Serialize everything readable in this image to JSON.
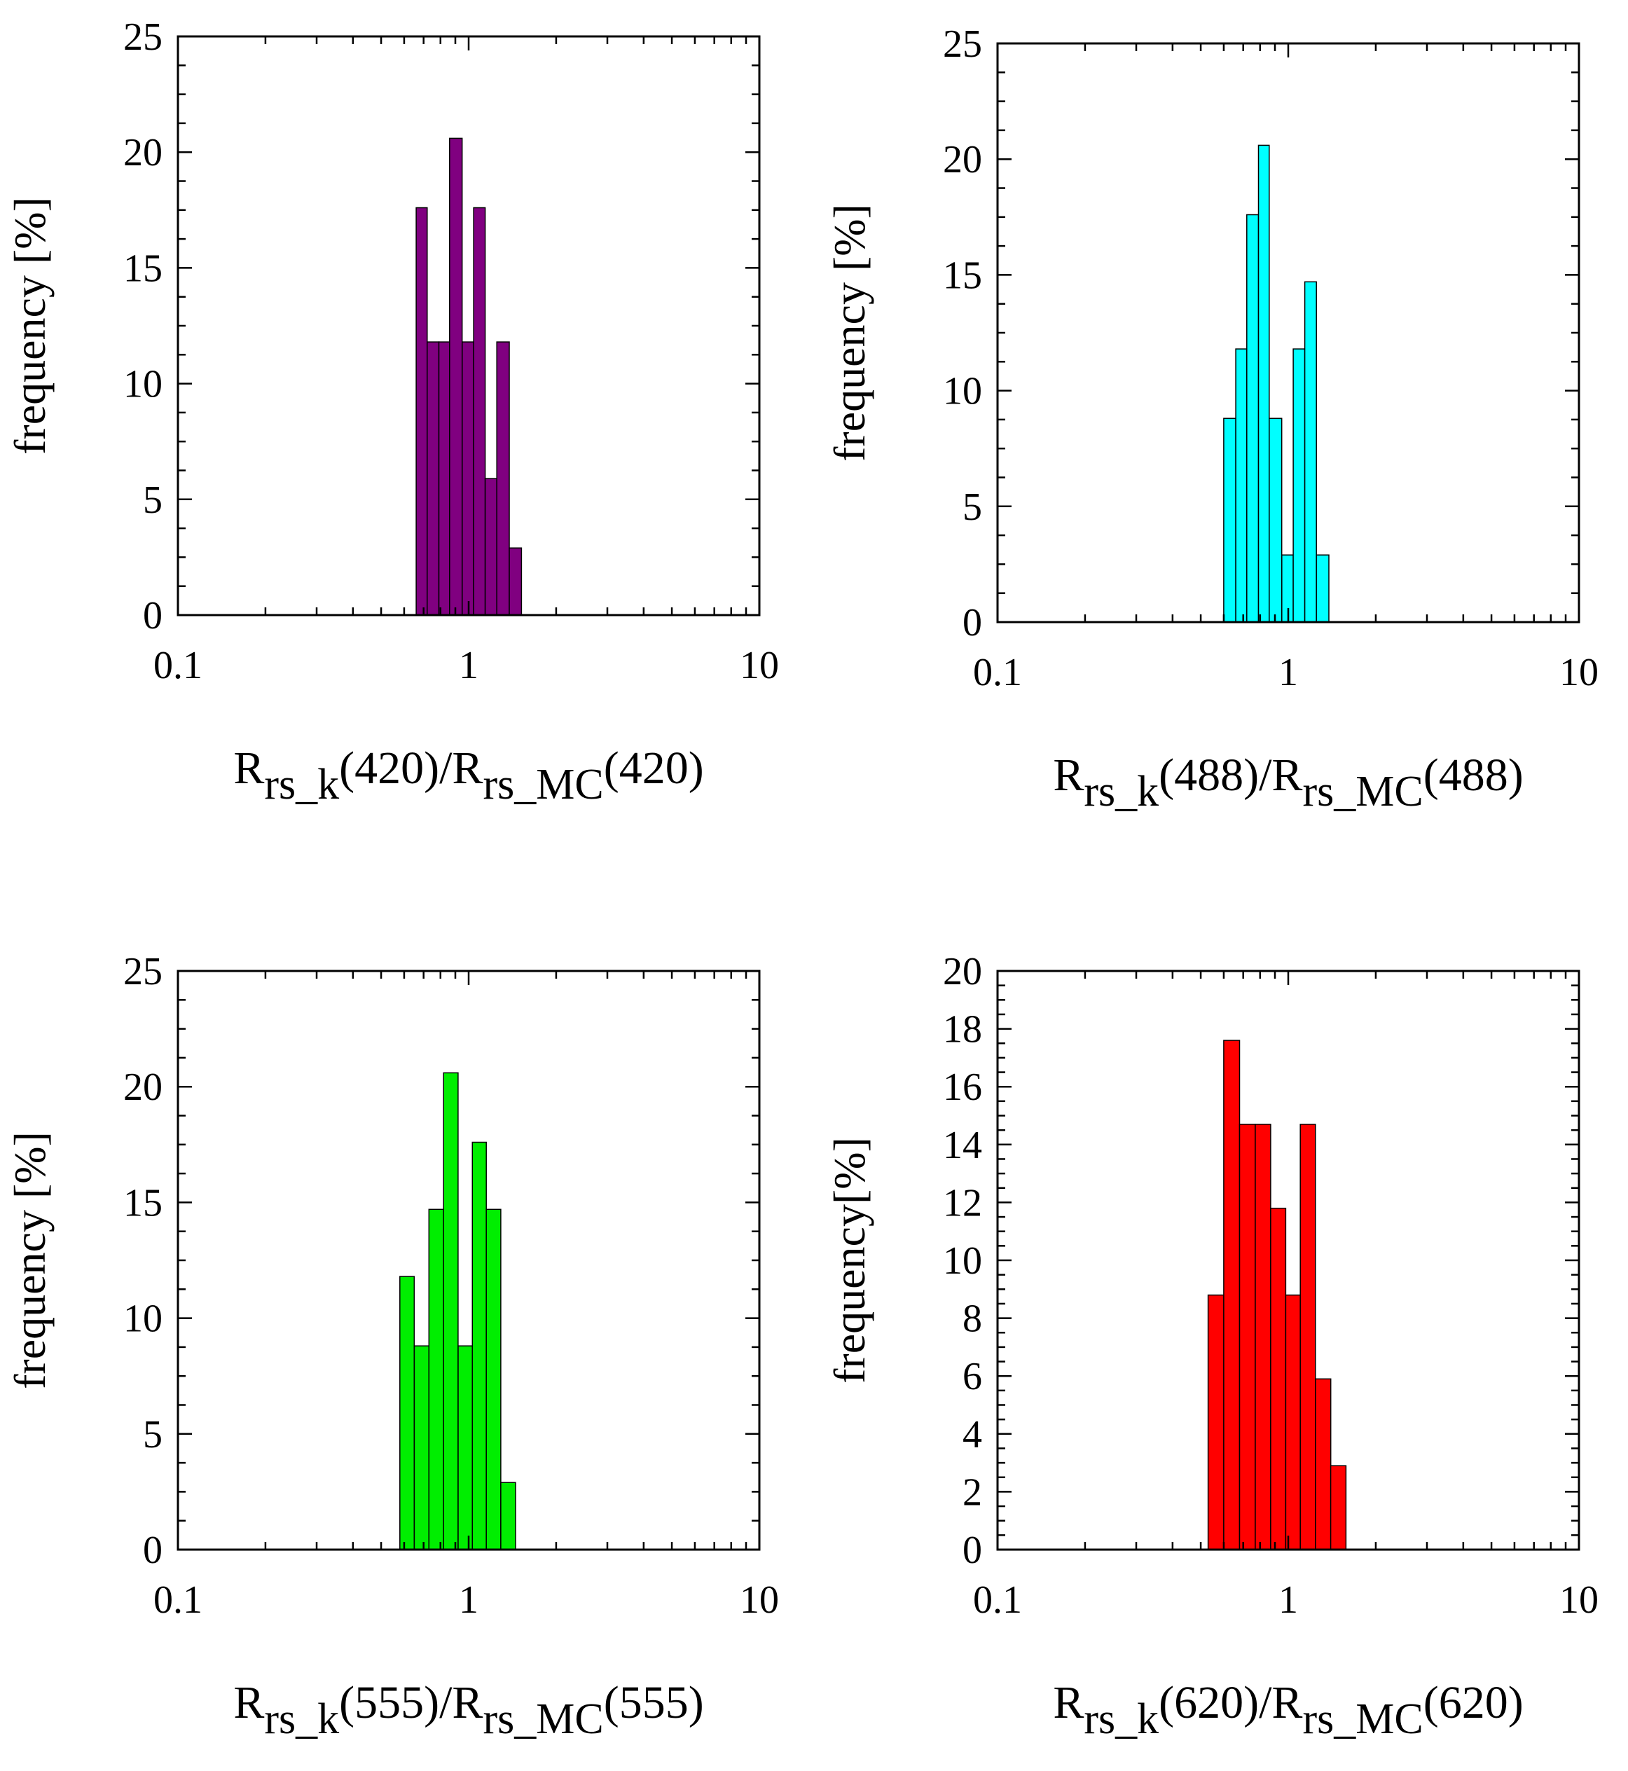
{
  "chart_data": [
    {
      "id": "p420",
      "type": "bar",
      "title": "",
      "xscale": "log",
      "xlim": [
        0.1,
        10
      ],
      "ylim": [
        0,
        25
      ],
      "yticks": [
        0,
        5,
        10,
        15,
        20,
        25
      ],
      "xtick_labels": [
        "0.1",
        "1",
        "10"
      ],
      "ylabel": "frequency [%]",
      "xlabel": {
        "r1": "R",
        "s1": "rs_k",
        "m1": "(420)/",
        "r2": "R",
        "s2": "rs_MC",
        "m2": "(420)"
      },
      "color": "#800080",
      "bins": [
        {
          "x0": 0.66,
          "x1": 0.72,
          "value": 17.6
        },
        {
          "x0": 0.72,
          "x1": 0.79,
          "value": 11.8
        },
        {
          "x0": 0.79,
          "x1": 0.86,
          "value": 11.8
        },
        {
          "x0": 0.86,
          "x1": 0.95,
          "value": 20.6
        },
        {
          "x0": 0.95,
          "x1": 1.04,
          "value": 11.8
        },
        {
          "x0": 1.04,
          "x1": 1.14,
          "value": 17.6
        },
        {
          "x0": 1.14,
          "x1": 1.25,
          "value": 5.9
        },
        {
          "x0": 1.25,
          "x1": 1.38,
          "value": 11.8
        },
        {
          "x0": 1.38,
          "x1": 1.52,
          "value": 2.9
        }
      ]
    },
    {
      "id": "p488",
      "type": "bar",
      "title": "",
      "xscale": "log",
      "xlim": [
        0.1,
        10
      ],
      "ylim": [
        0,
        25
      ],
      "yticks": [
        0,
        5,
        10,
        15,
        20,
        25
      ],
      "xtick_labels": [
        "0.1",
        "1",
        "10"
      ],
      "ylabel": "frequency [%]",
      "xlabel": {
        "r1": "R",
        "s1": "rs_k",
        "m1": "(488)/",
        "r2": "R",
        "s2": "rs_MC",
        "m2": "(488)"
      },
      "color": "#00ffff",
      "bins": [
        {
          "x0": 0.6,
          "x1": 0.66,
          "value": 8.8
        },
        {
          "x0": 0.66,
          "x1": 0.72,
          "value": 11.8
        },
        {
          "x0": 0.72,
          "x1": 0.79,
          "value": 17.6
        },
        {
          "x0": 0.79,
          "x1": 0.86,
          "value": 20.6
        },
        {
          "x0": 0.86,
          "x1": 0.95,
          "value": 8.8
        },
        {
          "x0": 0.95,
          "x1": 1.04,
          "value": 2.9
        },
        {
          "x0": 1.04,
          "x1": 1.14,
          "value": 11.8
        },
        {
          "x0": 1.14,
          "x1": 1.25,
          "value": 14.7
        },
        {
          "x0": 1.25,
          "x1": 1.38,
          "value": 2.9
        }
      ]
    },
    {
      "id": "p555",
      "type": "bar",
      "title": "",
      "xscale": "log",
      "xlim": [
        0.1,
        10
      ],
      "ylim": [
        0,
        25
      ],
      "yticks": [
        0,
        5,
        10,
        15,
        20,
        25
      ],
      "xtick_labels": [
        "0.1",
        "1",
        "10"
      ],
      "ylabel": "frequency [%]",
      "xlabel": {
        "r1": "R",
        "s1": "rs_k",
        "m1": "(555)/",
        "r2": "R",
        "s2": "rs_MC",
        "m2": "(555)"
      },
      "color": "#00ee00",
      "bins": [
        {
          "x0": 0.58,
          "x1": 0.65,
          "value": 11.8
        },
        {
          "x0": 0.65,
          "x1": 0.73,
          "value": 8.8
        },
        {
          "x0": 0.73,
          "x1": 0.82,
          "value": 14.7
        },
        {
          "x0": 0.82,
          "x1": 0.92,
          "value": 20.6
        },
        {
          "x0": 0.92,
          "x1": 1.03,
          "value": 8.8
        },
        {
          "x0": 1.03,
          "x1": 1.15,
          "value": 17.6
        },
        {
          "x0": 1.15,
          "x1": 1.29,
          "value": 14.7
        },
        {
          "x0": 1.29,
          "x1": 1.45,
          "value": 2.9
        }
      ]
    },
    {
      "id": "p620",
      "type": "bar",
      "title": "",
      "xscale": "log",
      "xlim": [
        0.1,
        10
      ],
      "ylim": [
        0,
        20
      ],
      "yticks": [
        0,
        2,
        4,
        6,
        8,
        10,
        12,
        14,
        16,
        18,
        20
      ],
      "xtick_labels": [
        "0.1",
        "1",
        "10"
      ],
      "ylabel": "frequency[%]",
      "xlabel": {
        "r1": "R",
        "s1": "rs_k",
        "m1": "(620)/",
        "r2": "R",
        "s2": "rs_MC",
        "m2": "(620)"
      },
      "color": "#ff0000",
      "bins": [
        {
          "x0": 0.53,
          "x1": 0.6,
          "value": 8.8
        },
        {
          "x0": 0.6,
          "x1": 0.68,
          "value": 17.6
        },
        {
          "x0": 0.68,
          "x1": 0.77,
          "value": 14.7
        },
        {
          "x0": 0.77,
          "x1": 0.87,
          "value": 14.7
        },
        {
          "x0": 0.87,
          "x1": 0.98,
          "value": 11.8
        },
        {
          "x0": 0.98,
          "x1": 1.1,
          "value": 8.8
        },
        {
          "x0": 1.1,
          "x1": 1.24,
          "value": 14.7
        },
        {
          "x0": 1.24,
          "x1": 1.4,
          "value": 5.9
        },
        {
          "x0": 1.4,
          "x1": 1.58,
          "value": 2.9
        }
      ]
    }
  ]
}
